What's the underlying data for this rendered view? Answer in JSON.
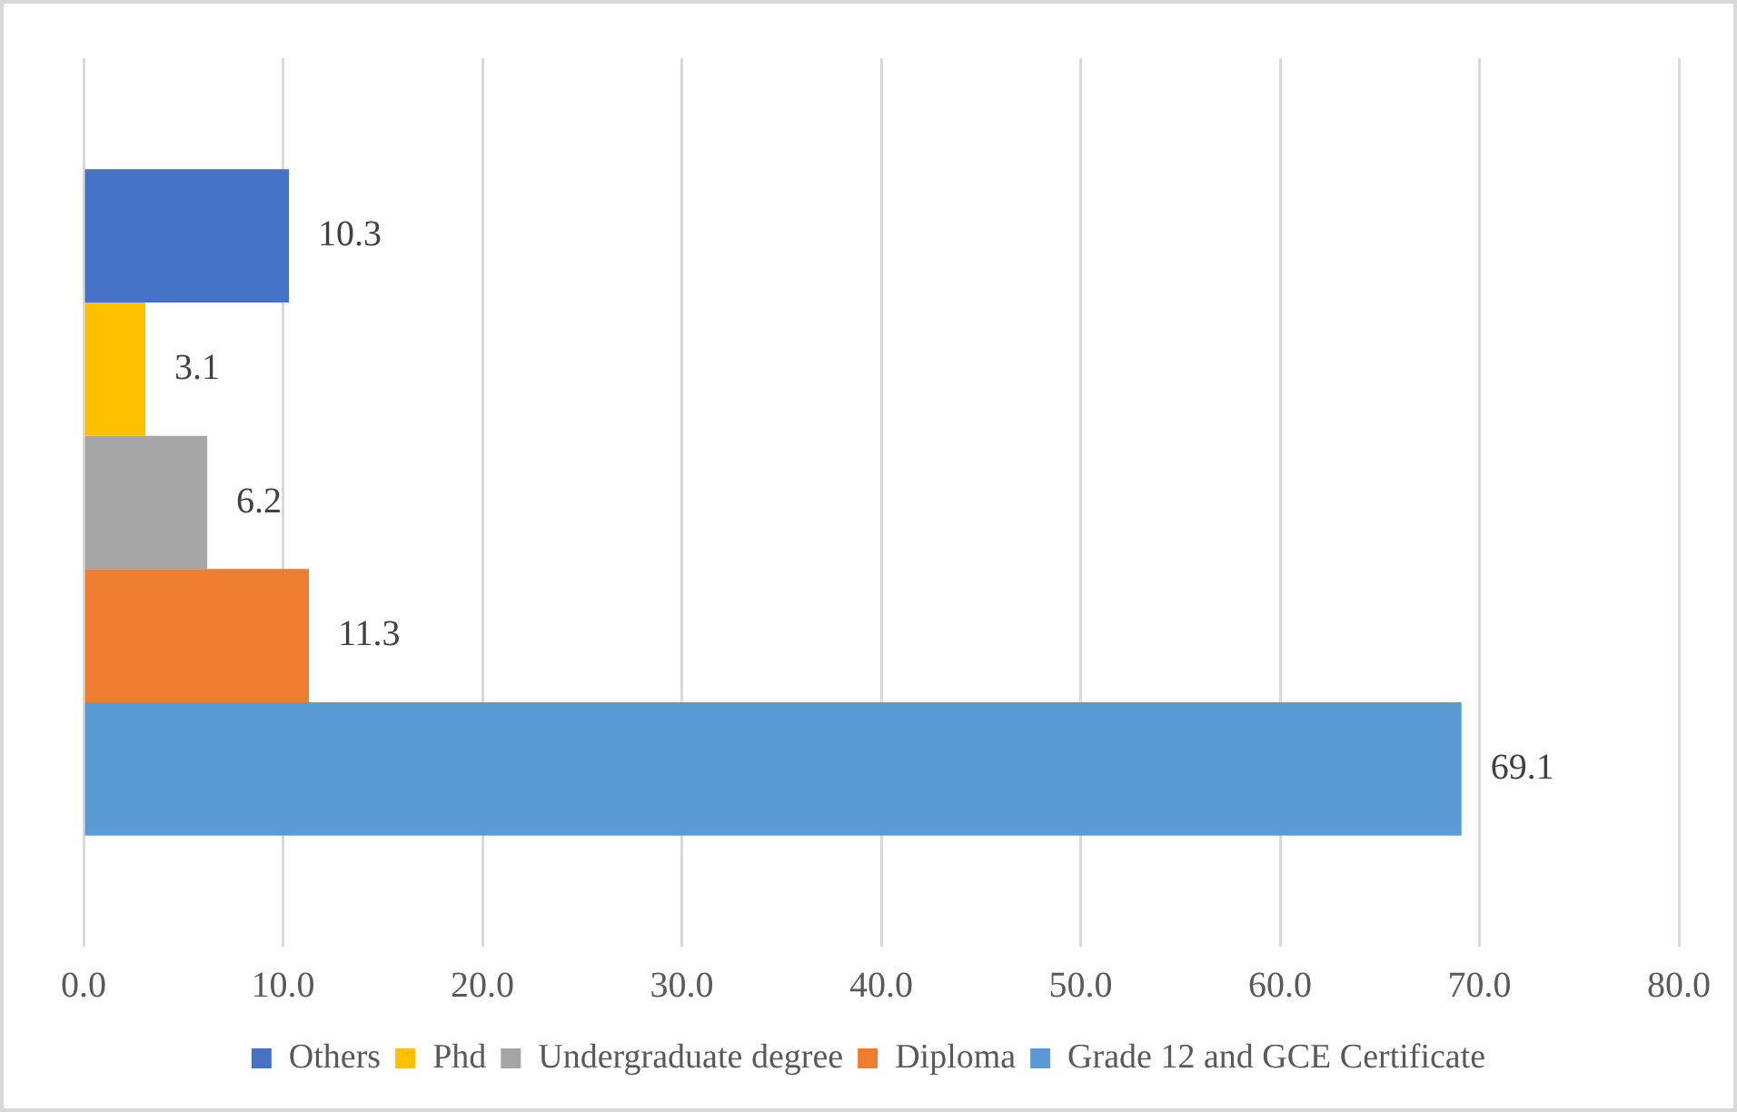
{
  "chart_data": {
    "type": "bar",
    "orientation": "horizontal",
    "categories": [
      null
    ],
    "series": [
      {
        "name": "Others",
        "color": "#4472c4",
        "values": [
          10.3
        ]
      },
      {
        "name": "Phd",
        "color": "#ffc000",
        "values": [
          3.1
        ]
      },
      {
        "name": "Undergraduate degree",
        "color": "#a5a5a5",
        "values": [
          6.2
        ]
      },
      {
        "name": "Diploma",
        "color": "#ed7d31",
        "values": [
          11.3
        ]
      },
      {
        "name": "Grade 12 and GCE Certificate",
        "color": "#5b9bd5",
        "values": [
          69.1
        ]
      }
    ],
    "xlim": [
      0,
      80
    ],
    "xticks": [
      {
        "value": 0,
        "label": "0.0"
      },
      {
        "value": 10,
        "label": "10.0"
      },
      {
        "value": 20,
        "label": "20.0"
      },
      {
        "value": 30,
        "label": "30.0"
      },
      {
        "value": 40,
        "label": "40.0"
      },
      {
        "value": 50,
        "label": "50.0"
      },
      {
        "value": 60,
        "label": "60.0"
      },
      {
        "value": 70,
        "label": "70.0"
      },
      {
        "value": 80,
        "label": "80.0"
      }
    ],
    "grid": "x",
    "legend": "bottom",
    "data_labels": true
  }
}
